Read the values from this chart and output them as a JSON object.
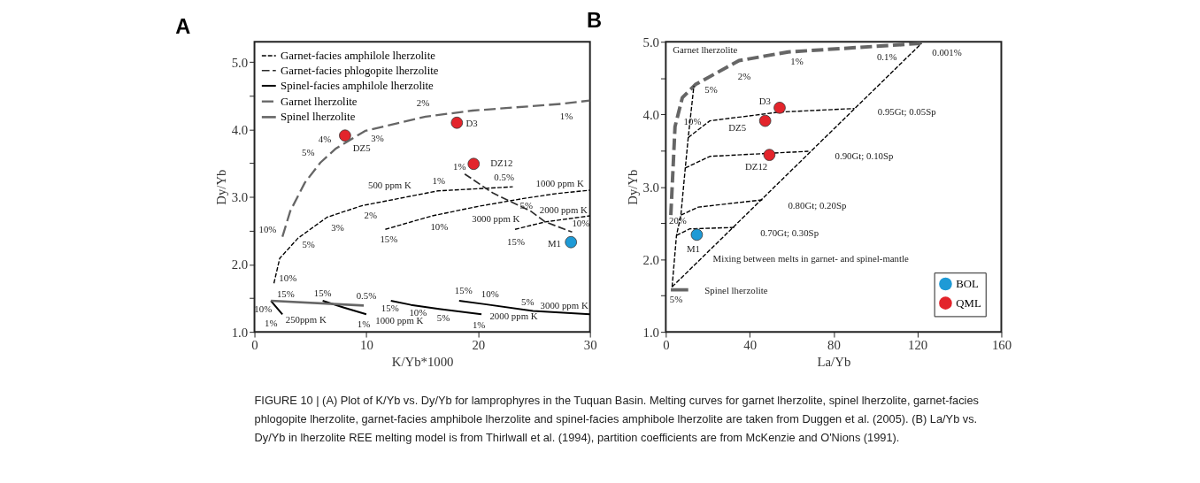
{
  "chart_data": [
    {
      "type": "line",
      "title": "A",
      "xlabel": "K/Yb*1000",
      "ylabel": "Dy/Yb",
      "xlim": [
        0,
        30
      ],
      "ylim": [
        1,
        5.3
      ],
      "xticks": [
        0,
        10,
        20,
        30
      ],
      "yticks": [
        {
          "value": 1,
          "label": "1.0"
        },
        {
          "value": 1.5,
          "label": null
        },
        {
          "value": 2,
          "label": "2.0"
        },
        {
          "value": 2.5,
          "label": null
        },
        {
          "value": 3,
          "label": "3.0"
        },
        {
          "value": 3.5,
          "label": null
        },
        {
          "value": 4,
          "label": "4.0"
        },
        {
          "value": 4.5,
          "label": null
        },
        {
          "value": 5,
          "label": "5.0"
        }
      ],
      "grid": false,
      "legend": "top left",
      "series": [
        {
          "name": "Garnet-facies amphilole lherzolite",
          "color": "#000000",
          "line_style": "dashed",
          "x": [
            1.74,
            2.26,
            3.9,
            6.5,
            9.6,
            16.4,
            23.1,
            null,
            11.7,
            15.9,
            20,
            23.8,
            27,
            30,
            null,
            23.3,
            26,
            30
          ],
          "values": [
            1.72,
            2.09,
            2.39,
            2.7,
            2.87,
            3.09,
            3.15,
            null,
            2.52,
            2.72,
            2.86,
            2.97,
            3.05,
            3.1,
            null,
            2.52,
            2.63,
            2.72
          ]
        },
        {
          "name": "Garnet-facies phlogopite lherzolite",
          "color": "#2b2b2b",
          "line_style": "dashed",
          "x": [
            18.8,
            21.3,
            24.7,
            26,
            28.4
          ],
          "values": [
            3.34,
            3.06,
            2.79,
            2.63,
            2.48
          ]
        },
        {
          "name": "Spinel-facies amphilole lherzolite",
          "color": "#000000",
          "line_style": "solid",
          "x": [
            1.47,
            2.5,
            null,
            6.1,
            8,
            10,
            null,
            12.2,
            14.0,
            16.5,
            20.3,
            null,
            18.3,
            20.6,
            24.9,
            30
          ],
          "values": [
            1.46,
            1.26,
            null,
            1.46,
            1.36,
            1.26,
            null,
            1.46,
            1.4,
            1.34,
            1.26,
            null,
            1.46,
            1.41,
            1.31,
            1.26
          ]
        },
        {
          "name": "Garnet lherzolite",
          "color": "#666666",
          "line_style": "dashed",
          "x": [
            2.5,
            3.2,
            4.5,
            5.9,
            7.3,
            9.9,
            15.3,
            19.5,
            27.5,
            30
          ],
          "values": [
            2.41,
            2.79,
            3.21,
            3.51,
            3.72,
            3.98,
            4.19,
            4.28,
            4.38,
            4.43
          ]
        },
        {
          "name": "Spinel lherzolite",
          "color": "#666666",
          "line_style": "solid",
          "x": [
            1.47,
            9.77
          ],
          "values": [
            1.46,
            1.39
          ]
        },
        {
          "type": "scatter",
          "marker": "circle",
          "color": "#e3242b",
          "x": [
            8.1,
            18.1,
            19.6
          ],
          "values": [
            3.91,
            4.1,
            3.49
          ]
        },
        {
          "type": "scatter",
          "marker": "circle",
          "color": "#1e9ad6",
          "x": [
            28.3
          ],
          "values": [
            2.33
          ]
        }
      ],
      "annotations": [
        {
          "text": "2%",
          "x": 15.3,
          "y": 4.19
        },
        {
          "text": "1%",
          "x": 27.5,
          "y": 4.38
        },
        {
          "text": "3%",
          "x": 9.9,
          "y": 3.98
        },
        {
          "text": "4%",
          "x": 7.3,
          "y": 3.72
        },
        {
          "text": "5%",
          "x": 5.9,
          "y": 3.51
        },
        {
          "text": "1%",
          "x": 18.8,
          "y": 3.34
        },
        {
          "text": "500 ppm K",
          "x": 9.6,
          "y": 2.87
        },
        {
          "text": "1%",
          "x": 16.4,
          "y": 3.09
        },
        {
          "text": "0.5%",
          "x": 23.1,
          "y": 3.15
        },
        {
          "text": "1000 ppm K",
          "x": 27,
          "y": 3.05
        },
        {
          "text": "10%",
          "x": 2.5,
          "y": 2.41
        },
        {
          "text": "5%",
          "x": 3.9,
          "y": 2.39
        },
        {
          "text": "3%",
          "x": 6.5,
          "y": 2.7
        },
        {
          "text": "2%",
          "x": 9.6,
          "y": 2.87
        },
        {
          "text": "10%",
          "x": 15.9,
          "y": 2.72
        },
        {
          "text": "15%",
          "x": 11.7,
          "y": 2.52
        },
        {
          "text": "15%",
          "x": 23.3,
          "y": 2.52
        },
        {
          "text": "10%",
          "x": 28.4,
          "y": 2.48
        },
        {
          "text": "5%",
          "x": 24.7,
          "y": 2.79
        },
        {
          "text": "3000 ppm K",
          "x": 24.7,
          "y": 2.79
        },
        {
          "text": "2000 ppm K",
          "x": 26,
          "y": 2.63
        },
        {
          "text": "10%",
          "x": 1.74,
          "y": 1.72
        },
        {
          "text": "15%",
          "x": 1.47,
          "y": 1.46
        },
        {
          "text": "15%",
          "x": 6.1,
          "y": 1.46
        },
        {
          "text": "0.5%",
          "x": 9.77,
          "y": 1.39
        },
        {
          "text": "10%",
          "x": 1.47,
          "y": 1.46
        },
        {
          "text": "1%",
          "x": 2.5,
          "y": 1.26
        },
        {
          "text": "250ppm K",
          "x": 2.5,
          "y": 1.26
        },
        {
          "text": "1%",
          "x": 10,
          "y": 1.26
        },
        {
          "text": "1000 ppm K",
          "x": 10,
          "y": 1.26
        },
        {
          "text": "15%",
          "x": 12.2,
          "y": 1.46
        },
        {
          "text": "10%",
          "x": 14.0,
          "y": 1.4
        },
        {
          "text": "5%",
          "x": 16.5,
          "y": 1.34
        },
        {
          "text": "1%",
          "x": 20.3,
          "y": 1.26
        },
        {
          "text": "2000 ppm K",
          "x": 20.3,
          "y": 1.26
        },
        {
          "text": "15%",
          "x": 18.3,
          "y": 1.46
        },
        {
          "text": "10%",
          "x": 20.6,
          "y": 1.41
        },
        {
          "text": "5%",
          "x": 24.9,
          "y": 1.31
        },
        {
          "text": "3000 ppm K",
          "x": 24.9,
          "y": 1.31
        },
        {
          "text": "DZ5",
          "x": 8.1,
          "y": 3.91
        },
        {
          "text": "D3",
          "x": 18.1,
          "y": 4.1
        },
        {
          "text": "DZ12",
          "x": 19.6,
          "y": 3.49
        },
        {
          "text": "M1",
          "x": 28.3,
          "y": 2.33
        },
        "FIGURE 10 | (A) Plot of K/Yb vs. Dy/Yb for lamprophyres in the Tuquan Basin. Melting curves for garnet lherzolite, spinel lherzolite, garnet-facies phlogopite lherzolite, garnet-facies amphibole lherzolite and spinel-facies amphibole lherzolite are taken from Duggen et al. (2005). (B) La/Yb vs. Dy/Yb in lherzolite REE melting model is from Thirlwall et al. (1994), partition coefficients are from McKenzie and O'Nions (1991)."
      ]
    },
    {
      "type": "line",
      "title": "B",
      "xlabel": "La/Yb",
      "ylabel": "Dy/Yb",
      "xlim": [
        0,
        160
      ],
      "ylim": [
        1,
        5
      ],
      "xticks": [
        0,
        40,
        80,
        120,
        160
      ],
      "yticks": [
        {
          "value": 1,
          "label": "1.0"
        },
        {
          "value": 1.5,
          "label": null
        },
        {
          "value": 2,
          "label": "2.0"
        },
        {
          "value": 2.5,
          "label": null
        },
        {
          "value": 3,
          "label": "3.0"
        },
        {
          "value": 3.5,
          "label": null
        },
        {
          "value": 4,
          "label": "4.0"
        },
        {
          "value": 4.5,
          "label": null
        },
        {
          "value": 5,
          "label": "5.0"
        }
      ],
      "grid": false,
      "legend": "bottom right",
      "series": [
        {
          "color": "#666666",
          "line_style": "dashed",
          "x": [
            2.4,
            4.4,
            7.9,
            14.1,
            34.9,
            58.4,
            112.5,
            122
          ],
          "values": [
            2.61,
            3.83,
            4.23,
            4.41,
            4.74,
            4.86,
            4.96,
            4.98
          ]
        },
        {
          "color": "#666666",
          "line_style": "solid",
          "x": [
            2.4,
            10.7
          ],
          "values": [
            1.58,
            1.58
          ]
        },
        {
          "color": "#000000",
          "line_style": "dashed",
          "x": [
            3,
            122,
            null,
            3,
            5.1,
            7.2,
            9.3,
            10.7,
            13.4,
            null,
            10.7,
            21,
            54,
            90,
            null,
            9.3,
            21,
            68,
            null,
            7.2,
            15.5,
            46,
            null,
            5.1,
            11.4,
            32.8
          ],
          "values": [
            1.62,
            4.98,
            null,
            1.62,
            2.33,
            2.61,
            3.26,
            3.68,
            4.39,
            null,
            3.68,
            3.91,
            4.03,
            4.08,
            null,
            3.26,
            3.42,
            3.49,
            null,
            2.61,
            2.72,
            2.82,
            null,
            2.33,
            2.42,
            2.44
          ]
        },
        {
          "type": "scatter",
          "marker": "circle",
          "name": "BOL",
          "color": "#1e9ad6",
          "x": [
            14.8
          ],
          "values": [
            2.34
          ]
        },
        {
          "type": "scatter",
          "marker": "circle",
          "name": "QML",
          "color": "#e3242b",
          "x": [
            54.3,
            47.4,
            49.4
          ],
          "values": [
            4.09,
            3.91,
            3.44
          ]
        }
      ],
      "annotations": [
        "Garnet lherzolite",
        {
          "text": "1%",
          "x": 58.4,
          "y": 4.86
        },
        {
          "text": "2%",
          "x": 34.9,
          "y": 4.74
        },
        {
          "text": "5%",
          "x": 14.1,
          "y": 4.41
        },
        {
          "text": "10%",
          "x": 4.4,
          "y": 3.83
        },
        {
          "text": "0.1%",
          "x": 112.5,
          "y": 4.96
        },
        {
          "text": "0.001%",
          "x": 122,
          "y": 4.98
        },
        {
          "text": "D3",
          "x": 54.3,
          "y": 4.09
        },
        {
          "text": "DZ5",
          "x": 47.4,
          "y": 3.91
        },
        {
          "text": "DZ12",
          "x": 49.4,
          "y": 3.44
        },
        {
          "text": "0.95Gt; 0.05Sp",
          "x": 90,
          "y": 4.08
        },
        {
          "text": "0.90Gt; 0.10Sp",
          "x": 68,
          "y": 3.49
        },
        {
          "text": "0.80Gt; 0.20Sp",
          "x": 46,
          "y": 2.82
        },
        {
          "text": "20%",
          "x": 2.4,
          "y": 2.61
        },
        {
          "text": "0.70Gt; 0.30Sp",
          "x": 32.8,
          "y": 2.44
        },
        {
          "text": "M1",
          "x": 14.8,
          "y": 2.34
        },
        "Mixing between melts in garnet- and spinel-mantle",
        {
          "text": "Spinel lherzolite",
          "x": 10.7,
          "y": 1.58
        },
        {
          "text": "5%",
          "x": 2.4,
          "y": 1.58
        }
      ]
    }
  ]
}
